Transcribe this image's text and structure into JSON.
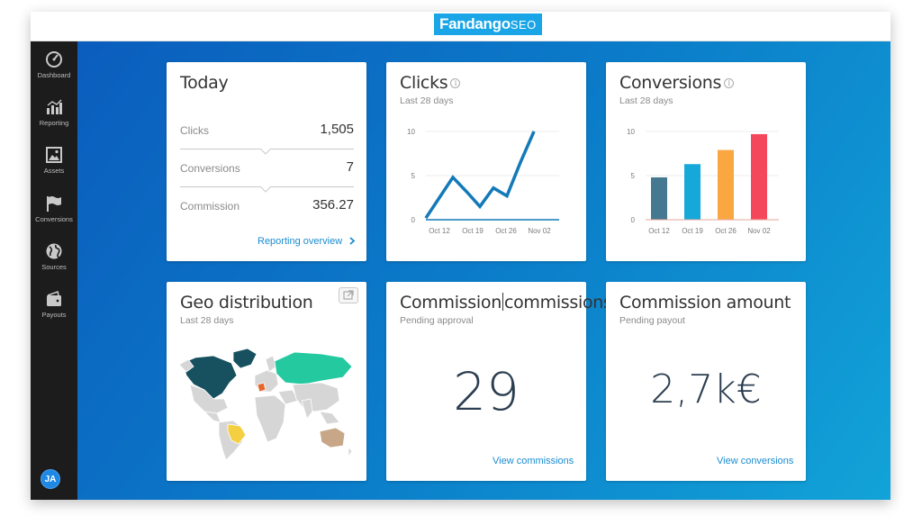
{
  "brand": {
    "name": "Fandango",
    "suffix": "SEO",
    "color": "#19a5e6"
  },
  "sidebar": {
    "items": [
      {
        "label": "Dashboard",
        "icon": "dashboard-icon"
      },
      {
        "label": "Reporting",
        "icon": "bar-chart-icon"
      },
      {
        "label": "Assets",
        "icon": "image-icon"
      },
      {
        "label": "Conversions",
        "icon": "flag-icon"
      },
      {
        "label": "Sources",
        "icon": "globe-icon"
      },
      {
        "label": "Payouts",
        "icon": "wallet-icon"
      }
    ],
    "user_initials": "JA"
  },
  "today": {
    "title": "Today",
    "rows": [
      {
        "label": "Clicks",
        "value": "1,505"
      },
      {
        "label": "Conversions",
        "value": "7"
      },
      {
        "label": "Commission",
        "value": "356.27"
      }
    ],
    "link": "Reporting overview",
    "link_icon": "chevron-right-icon"
  },
  "clicks": {
    "title": "Clicks",
    "subtitle": "Last 28 days",
    "line_color": "#1379b8"
  },
  "conversions": {
    "title": "Conversions",
    "subtitle": "Last 28 days"
  },
  "geo": {
    "title": "Geo distribution",
    "subtitle": "Last 28 days",
    "colors": {
      "base": "#d6d6d6",
      "north_america": "#17505f",
      "russia": "#24c9a0",
      "brazil": "#f5cf42",
      "australia": "#c8a789",
      "france": "#e8652b"
    }
  },
  "commissions": {
    "title_a": "Commission",
    "title_b": "commissions",
    "subtitle": "Pending approval",
    "value": "29",
    "link": "View commissions"
  },
  "amount": {
    "title": "Commission amount",
    "subtitle": "Pending payout",
    "value": "2,7k€",
    "link": "View conversions"
  },
  "chart_data": [
    {
      "type": "line",
      "title": "Clicks",
      "x_ticks": [
        "Oct 12",
        "Oct 19",
        "Oct 26",
        "Nov 02"
      ],
      "y_ticks": [
        "0",
        "5",
        "10"
      ],
      "ylim": [
        0,
        10
      ],
      "series": [
        {
          "values": [
            0.2,
            2.5,
            4.8,
            3.2,
            1.5,
            3.6,
            2.7,
            6.5,
            10
          ]
        }
      ],
      "grid": true
    },
    {
      "type": "bar",
      "title": "Conversions",
      "categories": [
        "Oct 12",
        "Oct 19",
        "Oct 26",
        "Nov 02"
      ],
      "values": [
        4.8,
        6.3,
        7.9,
        9.7
      ],
      "colors": [
        "#457891",
        "#16a8d9",
        "#fba741",
        "#f5475b"
      ],
      "y_ticks": [
        "0",
        "5",
        "10"
      ],
      "ylim": [
        0,
        10
      ],
      "grid": true
    }
  ]
}
